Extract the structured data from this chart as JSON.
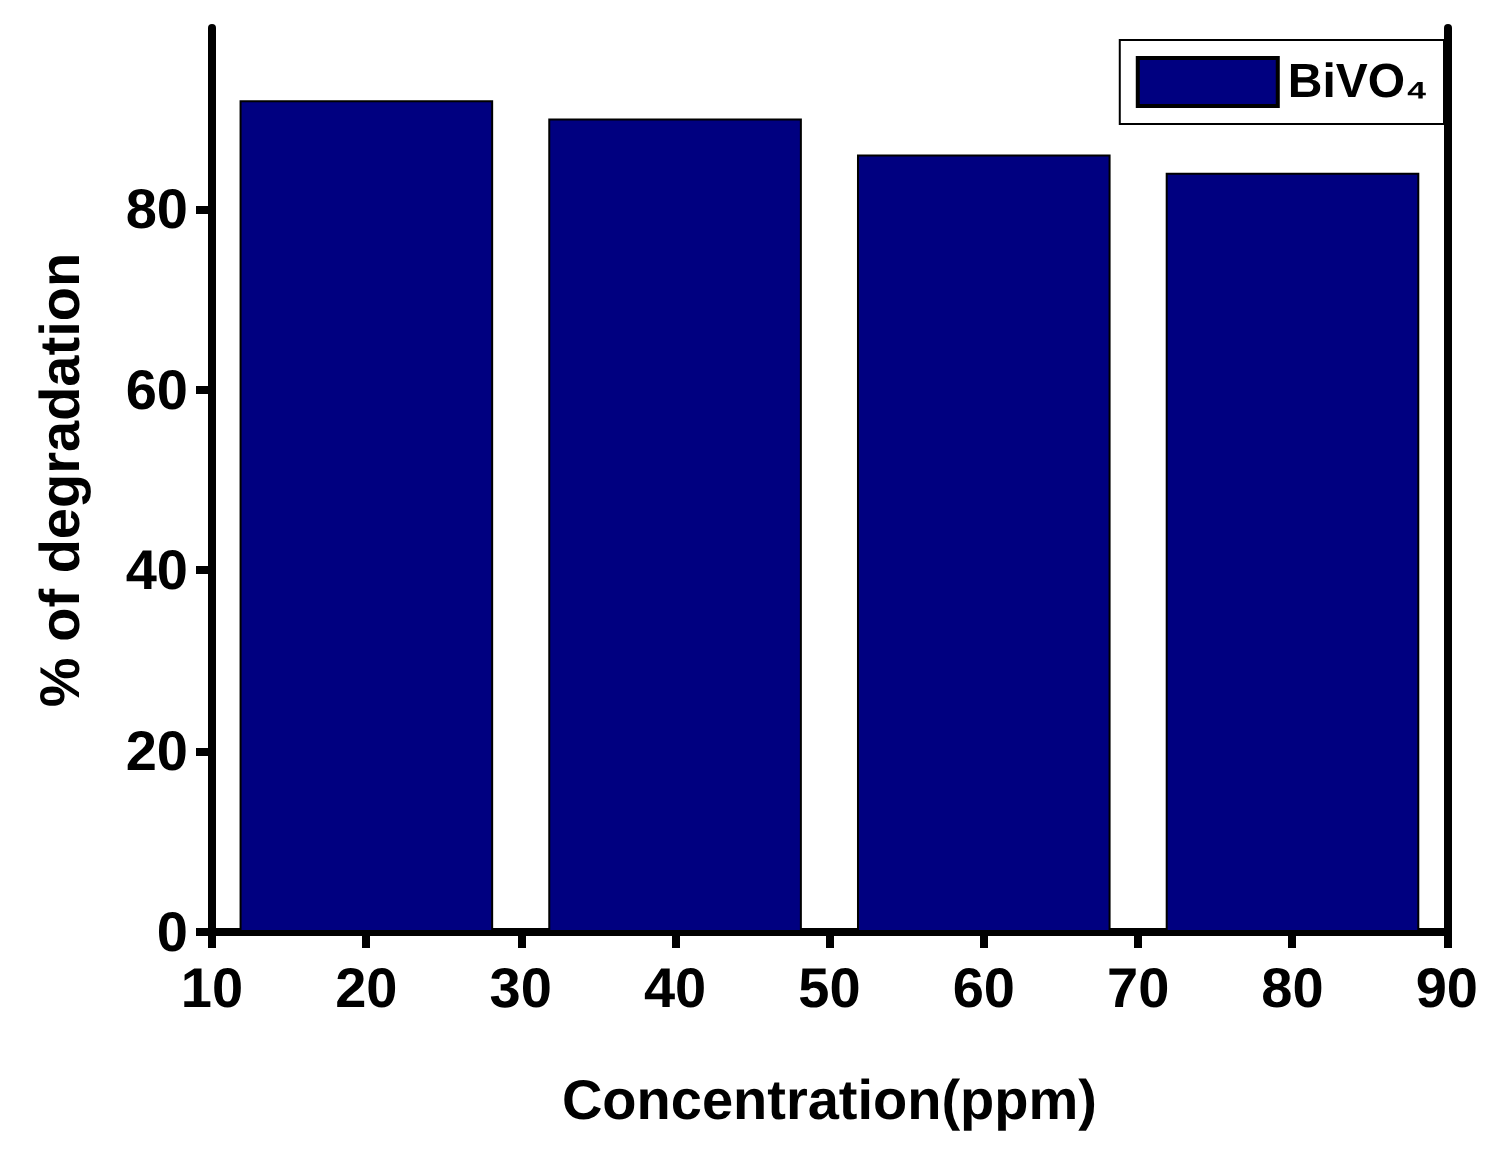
{
  "chart_data": {
    "type": "bar",
    "xlabel": "Concentration(ppm)",
    "ylabel": "% of degradation",
    "x": [
      20,
      40,
      60,
      80
    ],
    "series": [
      {
        "name": "BiVO₄",
        "color": "#000080",
        "values": [
          92,
          90,
          86,
          84
        ]
      }
    ],
    "xlim": [
      10,
      90
    ],
    "xticks": [
      10,
      20,
      30,
      40,
      50,
      60,
      70,
      80,
      90
    ],
    "ylim": [
      0,
      100
    ],
    "yticks": [
      0,
      20,
      40,
      60,
      80
    ],
    "legend": "top right",
    "grid": false
  }
}
